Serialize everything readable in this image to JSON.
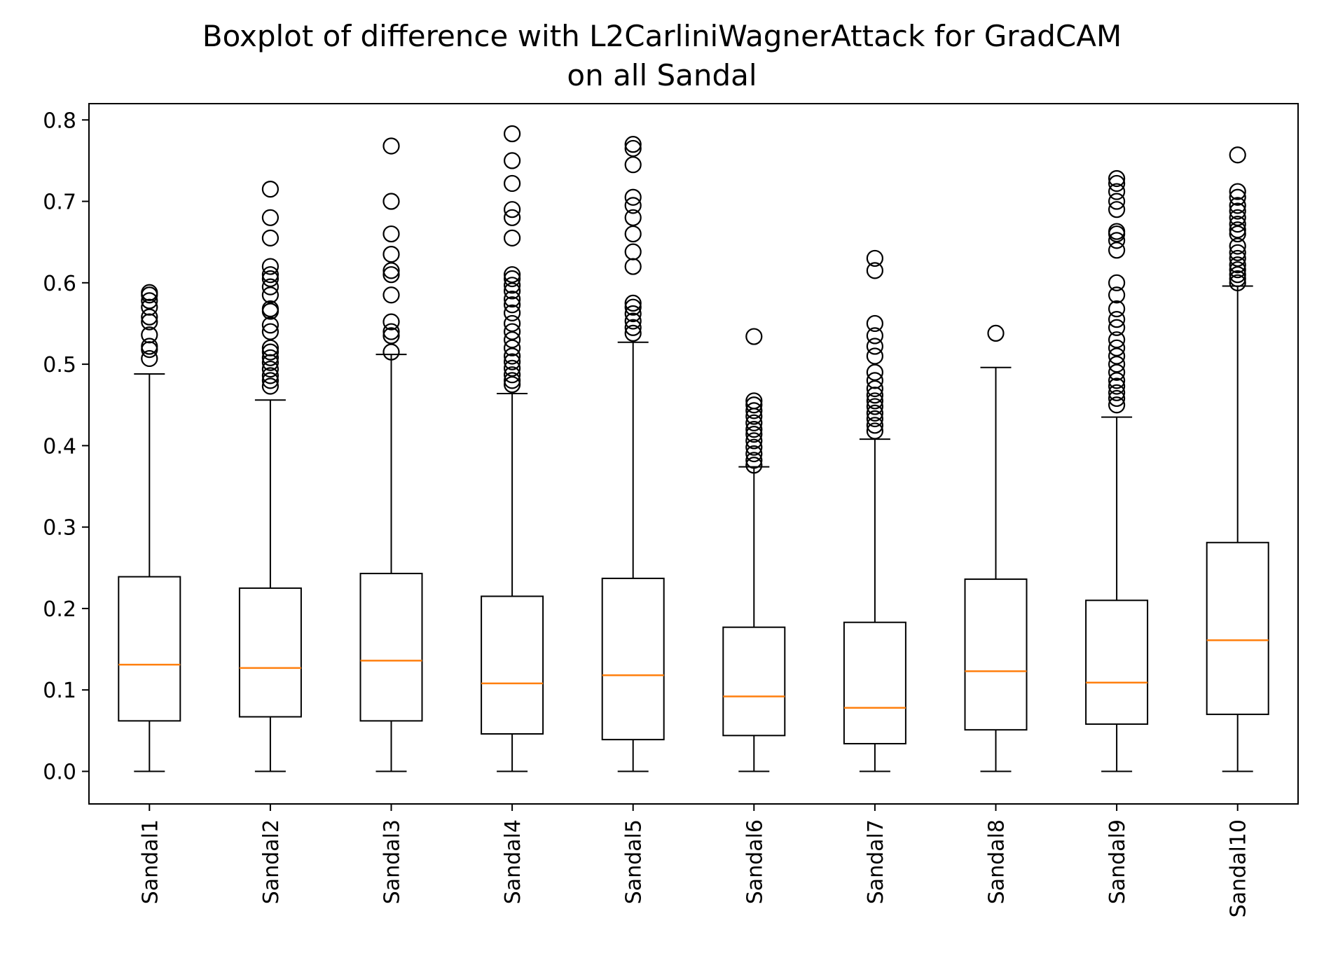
{
  "chart_data": {
    "type": "boxplot",
    "title": "Boxplot of difference with L2CarliniWagnerAttack for GradCAM",
    "subtitle": "on all Sandal",
    "xlabel": "",
    "ylabel": "",
    "ylim": [
      -0.04,
      0.82
    ],
    "yticks": [
      "0.0",
      "0.1",
      "0.2",
      "0.3",
      "0.4",
      "0.5",
      "0.6",
      "0.7",
      "0.8"
    ],
    "ytick_values": [
      0.0,
      0.1,
      0.2,
      0.3,
      0.4,
      0.5,
      0.6,
      0.7,
      0.8
    ],
    "grid": false,
    "colors": {
      "box": "#000000",
      "median": "#ff7f0e",
      "flier": "#000000"
    },
    "categories": [
      "Sandal1",
      "Sandal2",
      "Sandal3",
      "Sandal4",
      "Sandal5",
      "Sandal6",
      "Sandal7",
      "Sandal8",
      "Sandal9",
      "Sandal10"
    ],
    "boxes": [
      {
        "label": "Sandal1",
        "whisker_low": 0.0,
        "q1": 0.062,
        "median": 0.131,
        "q3": 0.239,
        "whisker_high": 0.488,
        "fliers": [
          0.507,
          0.518,
          0.522,
          0.536,
          0.552,
          0.558,
          0.57,
          0.578,
          0.585,
          0.588
        ]
      },
      {
        "label": "Sandal2",
        "whisker_low": 0.0,
        "q1": 0.067,
        "median": 0.127,
        "q3": 0.225,
        "whisker_high": 0.456,
        "fliers": [
          0.473,
          0.48,
          0.486,
          0.494,
          0.502,
          0.508,
          0.515,
          0.52,
          0.54,
          0.548,
          0.565,
          0.568,
          0.585,
          0.595,
          0.605,
          0.61,
          0.62,
          0.655,
          0.68,
          0.715
        ]
      },
      {
        "label": "Sandal3",
        "whisker_low": 0.0,
        "q1": 0.062,
        "median": 0.136,
        "q3": 0.243,
        "whisker_high": 0.512,
        "fliers": [
          0.515,
          0.535,
          0.54,
          0.552,
          0.585,
          0.61,
          0.615,
          0.635,
          0.66,
          0.7,
          0.768
        ]
      },
      {
        "label": "Sandal4",
        "whisker_low": 0.0,
        "q1": 0.046,
        "median": 0.108,
        "q3": 0.215,
        "whisker_high": 0.464,
        "fliers": [
          0.475,
          0.48,
          0.487,
          0.495,
          0.503,
          0.51,
          0.52,
          0.53,
          0.54,
          0.55,
          0.563,
          0.573,
          0.58,
          0.59,
          0.597,
          0.605,
          0.61,
          0.655,
          0.68,
          0.69,
          0.722,
          0.75,
          0.783
        ]
      },
      {
        "label": "Sandal5",
        "whisker_low": 0.0,
        "q1": 0.039,
        "median": 0.118,
        "q3": 0.237,
        "whisker_high": 0.527,
        "fliers": [
          0.538,
          0.545,
          0.553,
          0.562,
          0.57,
          0.575,
          0.62,
          0.638,
          0.66,
          0.68,
          0.695,
          0.705,
          0.745,
          0.765,
          0.77
        ]
      },
      {
        "label": "Sandal6",
        "whisker_low": 0.0,
        "q1": 0.044,
        "median": 0.092,
        "q3": 0.177,
        "whisker_high": 0.374,
        "fliers": [
          0.376,
          0.382,
          0.39,
          0.398,
          0.406,
          0.414,
          0.42,
          0.428,
          0.436,
          0.443,
          0.45,
          0.455,
          0.534
        ]
      },
      {
        "label": "Sandal7",
        "whisker_low": 0.0,
        "q1": 0.034,
        "median": 0.078,
        "q3": 0.183,
        "whisker_high": 0.408,
        "fliers": [
          0.418,
          0.425,
          0.433,
          0.44,
          0.448,
          0.455,
          0.462,
          0.47,
          0.48,
          0.49,
          0.51,
          0.522,
          0.535,
          0.55,
          0.615,
          0.63
        ]
      },
      {
        "label": "Sandal8",
        "whisker_low": 0.0,
        "q1": 0.051,
        "median": 0.123,
        "q3": 0.236,
        "whisker_high": 0.496,
        "fliers": [
          0.538
        ]
      },
      {
        "label": "Sandal9",
        "whisker_low": 0.0,
        "q1": 0.058,
        "median": 0.109,
        "q3": 0.21,
        "whisker_high": 0.435,
        "fliers": [
          0.45,
          0.458,
          0.465,
          0.473,
          0.48,
          0.49,
          0.5,
          0.51,
          0.52,
          0.53,
          0.545,
          0.555,
          0.568,
          0.585,
          0.6,
          0.64,
          0.652,
          0.66,
          0.663,
          0.69,
          0.7,
          0.712,
          0.722,
          0.728
        ]
      },
      {
        "label": "Sandal10",
        "whisker_low": 0.0,
        "q1": 0.07,
        "median": 0.161,
        "q3": 0.281,
        "whisker_high": 0.596,
        "fliers": [
          0.6,
          0.605,
          0.61,
          0.616,
          0.622,
          0.63,
          0.637,
          0.645,
          0.66,
          0.665,
          0.672,
          0.68,
          0.688,
          0.695,
          0.705,
          0.712,
          0.757
        ]
      }
    ]
  }
}
